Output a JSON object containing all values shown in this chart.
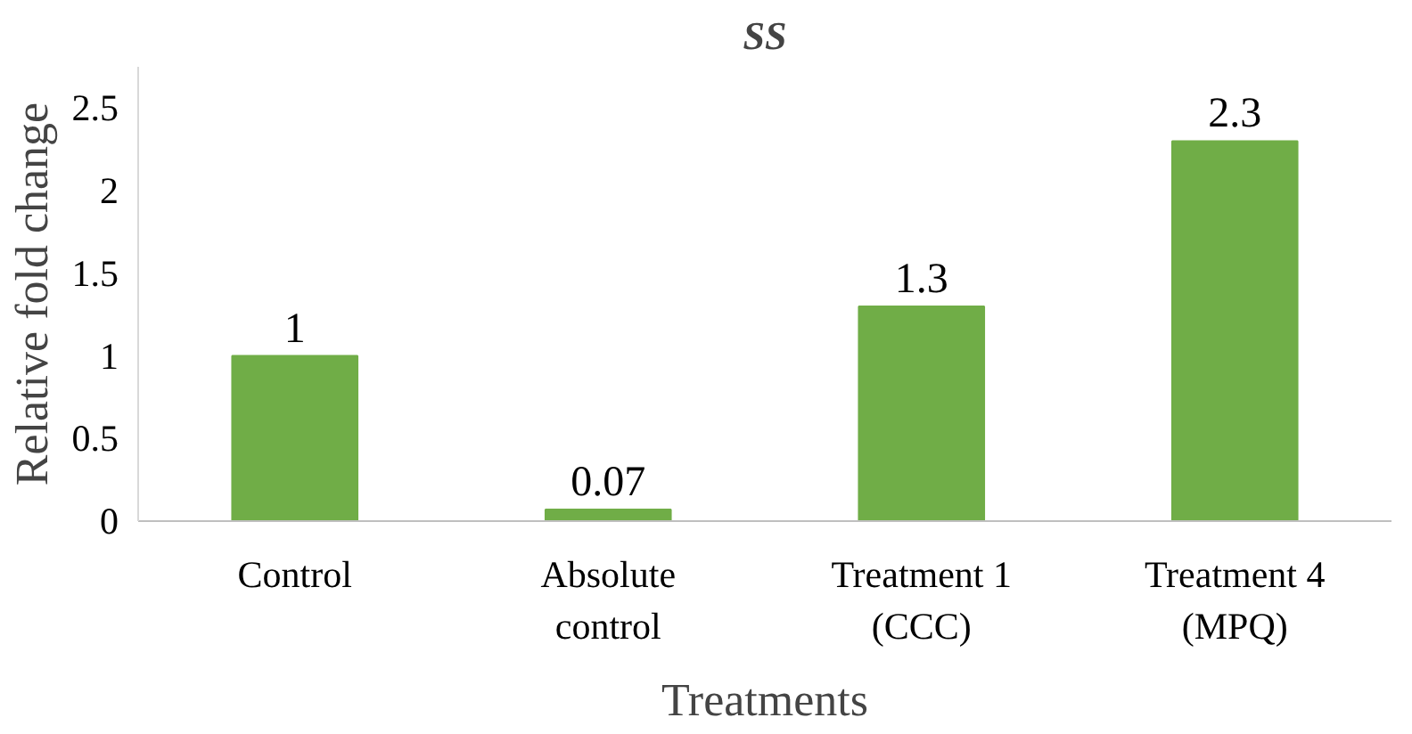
{
  "chart_data": {
    "type": "bar",
    "title": "SS",
    "xlabel": "Treatments",
    "ylabel": "Relative fold change",
    "categories": [
      "Control",
      "Absolute control",
      "Treatment 1 (CCC)",
      "Treatment 4 (MPQ)"
    ],
    "values": [
      1,
      0.07,
      1.3,
      2.3
    ],
    "color": "#70ad47",
    "ylim": [
      0,
      2.75
    ],
    "yticks": [
      0,
      0.5,
      1,
      1.5,
      2,
      2.5
    ],
    "grid": false,
    "data_labels": true
  }
}
